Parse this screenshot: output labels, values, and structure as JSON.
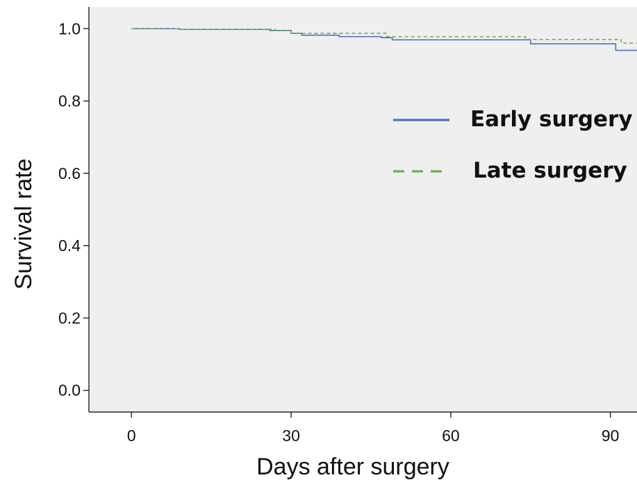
{
  "chart_data": {
    "type": "line",
    "title": "",
    "xlabel": "Days after surgery",
    "ylabel": "Survival rate",
    "xlim": [
      -8,
      95
    ],
    "ylim": [
      -0.06,
      1.06
    ],
    "xticks": [
      0,
      30,
      60,
      90
    ],
    "xtick_labels": [
      "0",
      "30",
      "60",
      "90"
    ],
    "yticks": [
      0.0,
      0.2,
      0.4,
      0.6,
      0.8,
      1.0
    ],
    "ytick_labels": [
      "0.0",
      "0.2",
      "0.4",
      "0.6",
      "0.8",
      "1.0"
    ],
    "grid": false,
    "legend_position": "right",
    "plot_background": "#efefef",
    "series": [
      {
        "name": "Early surgery",
        "color": "#4a72c4",
        "style": "solid",
        "step": "post",
        "x": [
          0,
          9,
          26,
          30,
          32,
          39,
          47,
          49,
          75,
          91,
          95
        ],
        "y": [
          1.0,
          0.998,
          0.995,
          0.987,
          0.982,
          0.978,
          0.975,
          0.969,
          0.958,
          0.94,
          0.94
        ]
      },
      {
        "name": "Late surgery",
        "color": "#6ab04c",
        "style": "dashed",
        "step": "post",
        "x": [
          0,
          9,
          27,
          30,
          48,
          74,
          92,
          95
        ],
        "y": [
          1.0,
          0.998,
          0.995,
          0.987,
          0.978,
          0.97,
          0.96,
          0.96
        ]
      }
    ]
  }
}
